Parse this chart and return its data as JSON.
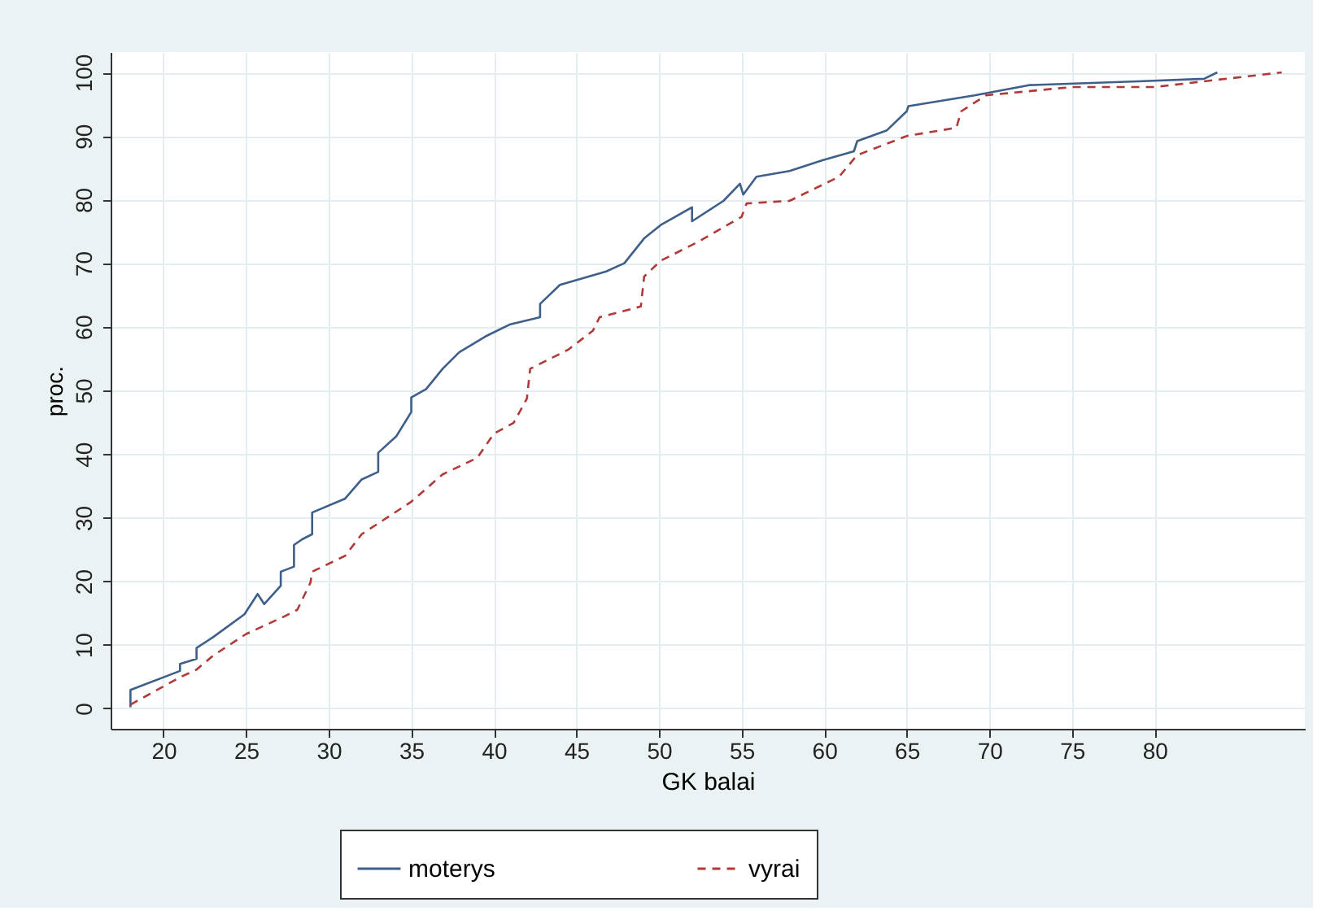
{
  "chart_data": {
    "type": "line",
    "xlabel": "GK balai",
    "ylabel": "proc.",
    "xlim": [
      16.8,
      89.1
    ],
    "ylim": [
      -3.2,
      103.2
    ],
    "xticks": [
      20,
      25,
      30,
      35,
      40,
      45,
      50,
      55,
      60,
      65,
      70,
      75,
      80
    ],
    "yticks": [
      0,
      10,
      20,
      30,
      40,
      50,
      60,
      70,
      80,
      90,
      100
    ],
    "grid": true,
    "legend": "bottom",
    "marker": "none",
    "series": [
      {
        "name": "moterys",
        "color": "#3d5f8a",
        "line_style": "solid",
        "x": [
          18.0,
          18.0,
          21.0,
          21.0,
          22.0,
          22.0,
          23.0,
          24.9,
          25.7,
          26.1,
          27.1,
          27.1,
          27.9,
          27.9,
          28.4,
          29.0,
          29.0,
          31.0,
          32.0,
          33.0,
          33.0,
          34.1,
          35.0,
          35.0,
          35.9,
          36.9,
          37.9,
          39.5,
          41.0,
          42.8,
          42.8,
          44.0,
          46.8,
          47.9,
          49.1,
          50.1,
          52.0,
          52.0,
          53.9,
          54.9,
          55.1,
          55.9,
          57.9,
          59.9,
          61.8,
          62.0,
          63.8,
          65.0,
          65.1,
          69.1,
          72.4,
          79.0,
          83.0,
          83.8
        ],
        "values": [
          0.2,
          2.9,
          5.9,
          7.0,
          7.8,
          9.5,
          11.2,
          14.8,
          18.0,
          16.4,
          19.3,
          21.5,
          22.3,
          25.7,
          26.6,
          27.4,
          30.8,
          33.0,
          36.0,
          37.2,
          40.2,
          42.8,
          46.6,
          48.9,
          50.2,
          53.4,
          56.0,
          58.5,
          60.4,
          61.5,
          63.6,
          66.6,
          68.7,
          70.0,
          73.9,
          76.0,
          78.8,
          76.6,
          79.8,
          82.5,
          80.8,
          83.6,
          84.5,
          86.2,
          87.6,
          89.2,
          90.9,
          93.9,
          94.7,
          96.4,
          98.0,
          98.6,
          99.0,
          100.0
        ]
      },
      {
        "name": "vyrai",
        "color": "#b03a3a",
        "line_style": "dashed",
        "x": [
          18.0,
          21.0,
          22.0,
          23.0,
          25.0,
          27.1,
          28.1,
          28.9,
          29.0,
          31.0,
          32.0,
          33.3,
          35.0,
          36.9,
          39.0,
          40.0,
          41.2,
          42.0,
          42.2,
          44.5,
          46.0,
          46.4,
          48.9,
          49.1,
          50.1,
          52.4,
          53.0,
          55.0,
          55.3,
          57.9,
          60.9,
          62.0,
          65.0,
          68.0,
          68.3,
          69.8,
          75.0,
          80.0,
          83.0,
          87.7
        ],
        "values": [
          0.6,
          4.9,
          6.1,
          8.3,
          11.7,
          14.2,
          15.5,
          19.8,
          21.5,
          24.0,
          27.4,
          29.6,
          32.5,
          36.8,
          39.4,
          43.2,
          44.9,
          48.7,
          53.4,
          56.4,
          59.4,
          61.5,
          63.2,
          67.9,
          70.4,
          73.4,
          74.3,
          77.3,
          79.4,
          79.8,
          83.6,
          87.0,
          90.0,
          91.3,
          93.9,
          96.4,
          97.7,
          97.7,
          98.6,
          100.0
        ]
      }
    ]
  }
}
